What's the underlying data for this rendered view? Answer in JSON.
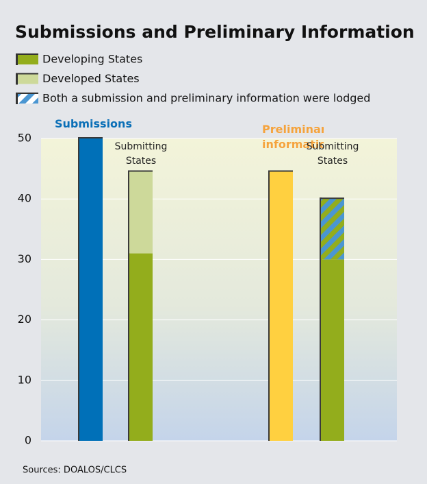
{
  "chart_data": {
    "type": "bar",
    "title": "Submissions and Preliminary Information",
    "categories": [
      "Submissions",
      "Submitting States",
      "Preliminary information",
      "Submitting States"
    ],
    "label_colors": [
      "#0a6fb7",
      "#222222",
      "#f5a33c",
      "#222222"
    ],
    "single_bars": {
      "values": [
        50,
        null,
        44.5,
        null
      ],
      "colors": [
        "#0070b8",
        null,
        "#ffd040",
        null
      ]
    },
    "series": [
      {
        "name": "Developing States",
        "color": "#93ad1c",
        "values": [
          null,
          31,
          null,
          30
        ]
      },
      {
        "name": "Developed States",
        "color": "#cdd99a",
        "values": [
          null,
          13.5,
          null,
          null
        ]
      },
      {
        "name": "Both a submission and preliminary information were lodged",
        "color": "#4a96d2",
        "pattern": "hatch",
        "values": [
          null,
          null,
          null,
          10
        ]
      }
    ],
    "ylim": [
      0,
      50
    ],
    "yticks": [
      0,
      10,
      20,
      30,
      40,
      50
    ],
    "grid": true,
    "source": "Sources: DOALOS/CLCS"
  }
}
